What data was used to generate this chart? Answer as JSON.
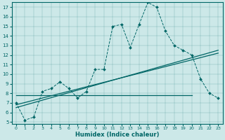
{
  "xlabel": "Humidex (Indice chaleur)",
  "bg_color": "#cce8e8",
  "line_color": "#006666",
  "xlim": [
    -0.5,
    23.5
  ],
  "ylim": [
    4.8,
    17.5
  ],
  "xticks": [
    0,
    1,
    2,
    3,
    4,
    5,
    6,
    7,
    8,
    9,
    10,
    11,
    12,
    13,
    14,
    15,
    16,
    17,
    18,
    19,
    20,
    21,
    22,
    23
  ],
  "yticks": [
    5,
    6,
    7,
    8,
    9,
    10,
    11,
    12,
    13,
    14,
    15,
    16,
    17
  ],
  "main_x": [
    0,
    1,
    2,
    3,
    4,
    5,
    6,
    7,
    8,
    9,
    10,
    11,
    12,
    13,
    14,
    15,
    16,
    17,
    18,
    19,
    20,
    21,
    22,
    23
  ],
  "main_y": [
    7.0,
    5.2,
    5.5,
    8.2,
    8.5,
    9.2,
    8.5,
    7.5,
    8.2,
    10.5,
    10.5,
    15.0,
    15.2,
    12.8,
    15.2,
    17.5,
    17.0,
    14.5,
    13.0,
    12.5,
    12.0,
    9.5,
    8.0,
    7.5
  ],
  "trend1_x": [
    0,
    23
  ],
  "trend1_y": [
    6.5,
    12.5
  ],
  "trend2_x": [
    0,
    23
  ],
  "trend2_y": [
    6.8,
    12.2
  ],
  "hline_x": [
    0,
    20
  ],
  "hline_y": [
    7.8,
    7.8
  ]
}
